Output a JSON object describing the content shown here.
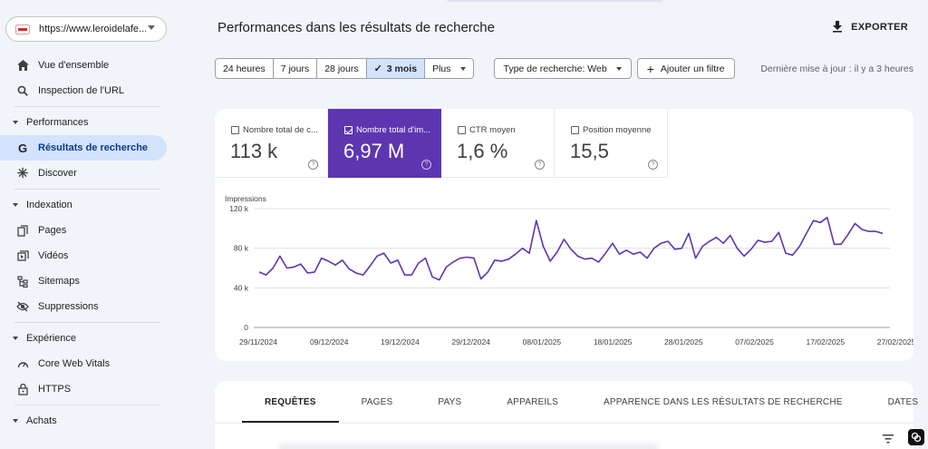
{
  "property": {
    "url": "https://www.leroidelafe..."
  },
  "sidebar": {
    "items": [
      {
        "label": "Vue d'ensemble",
        "icon": "home-icon"
      },
      {
        "label": "Inspection de l'URL",
        "icon": "search-icon"
      }
    ],
    "sections": [
      {
        "title": "Performances",
        "items": [
          {
            "label": "Résultats de recherche",
            "icon": "google-g-icon",
            "active": true
          },
          {
            "label": "Discover",
            "icon": "asterisk-icon"
          }
        ]
      },
      {
        "title": "Indexation",
        "items": [
          {
            "label": "Pages",
            "icon": "pages-icon"
          },
          {
            "label": "Vidéos",
            "icon": "video-icon"
          },
          {
            "label": "Sitemaps",
            "icon": "sitemap-icon"
          },
          {
            "label": "Suppressions",
            "icon": "eye-off-icon"
          }
        ]
      },
      {
        "title": "Expérience",
        "items": [
          {
            "label": "Core Web Vitals",
            "icon": "gauge-icon"
          },
          {
            "label": "HTTPS",
            "icon": "lock-icon"
          }
        ]
      },
      {
        "title": "Achats",
        "items": []
      }
    ]
  },
  "header": {
    "title": "Performances dans les résultats de recherche",
    "export_label": "EXPORTER"
  },
  "filters": {
    "ranges": [
      "24 heures",
      "7 jours",
      "28 jours",
      "3 mois"
    ],
    "selected_range": "3 mois",
    "more_label": "Plus",
    "search_type": "Type de recherche: Web",
    "add_filter": "Ajouter un filtre",
    "last_update": "Dernière mise à jour : il y a 3 heures"
  },
  "metrics": [
    {
      "label": "Nombre total de c...",
      "value": "113 k",
      "checked": false
    },
    {
      "label": "Nombre total d'im...",
      "value": "6,97 M",
      "checked": true
    },
    {
      "label": "CTR moyen",
      "value": "1,6 %",
      "checked": false
    },
    {
      "label": "Position moyenne",
      "value": "15,5",
      "checked": false
    }
  ],
  "colors": {
    "accent": "#5e35b1",
    "selected_nav": "#d3e3fd",
    "background": "#f1f4f9"
  },
  "chart_data": {
    "type": "line",
    "ylabel": "Impressions",
    "ylim": [
      0,
      120000
    ],
    "y_ticks": [
      "120 k",
      "80 k",
      "40 k",
      "0"
    ],
    "x_tick_labels": [
      "29/11/2024",
      "09/12/2024",
      "19/12/2024",
      "29/12/2024",
      "08/01/2025",
      "18/01/2025",
      "28/01/2025",
      "07/02/2025",
      "17/02/2025",
      "27/02/2025"
    ],
    "grid": true,
    "series": [
      {
        "name": "Impressions",
        "color": "#5e35b1",
        "values": [
          56000,
          53000,
          60000,
          72000,
          60000,
          61000,
          64000,
          55000,
          56000,
          70000,
          67000,
          63000,
          68000,
          59000,
          55000,
          53000,
          62000,
          72000,
          75000,
          65000,
          68000,
          53000,
          53000,
          65000,
          70000,
          51000,
          48000,
          61000,
          66000,
          70000,
          71000,
          70000,
          49000,
          56000,
          68000,
          67000,
          69000,
          74000,
          80000,
          75000,
          108000,
          82000,
          67000,
          76000,
          89000,
          79000,
          72000,
          69000,
          70000,
          66000,
          75000,
          85000,
          74000,
          78000,
          74000,
          76000,
          70000,
          80000,
          85000,
          87000,
          79000,
          80000,
          95000,
          70000,
          82000,
          87000,
          91000,
          85000,
          93000,
          80000,
          72000,
          79000,
          88000,
          86000,
          87000,
          96000,
          75000,
          73000,
          82000,
          95000,
          108000,
          106000,
          111000,
          84000,
          84000,
          94000,
          105000,
          99000,
          97000,
          97000,
          95000
        ]
      }
    ]
  },
  "tabs": [
    "REQUÊTES",
    "PAGES",
    "PAYS",
    "APPAREILS",
    "APPARENCE DANS LES RÉSULTATS DE RECHERCHE",
    "DATES"
  ],
  "active_tab": "REQUÊTES"
}
